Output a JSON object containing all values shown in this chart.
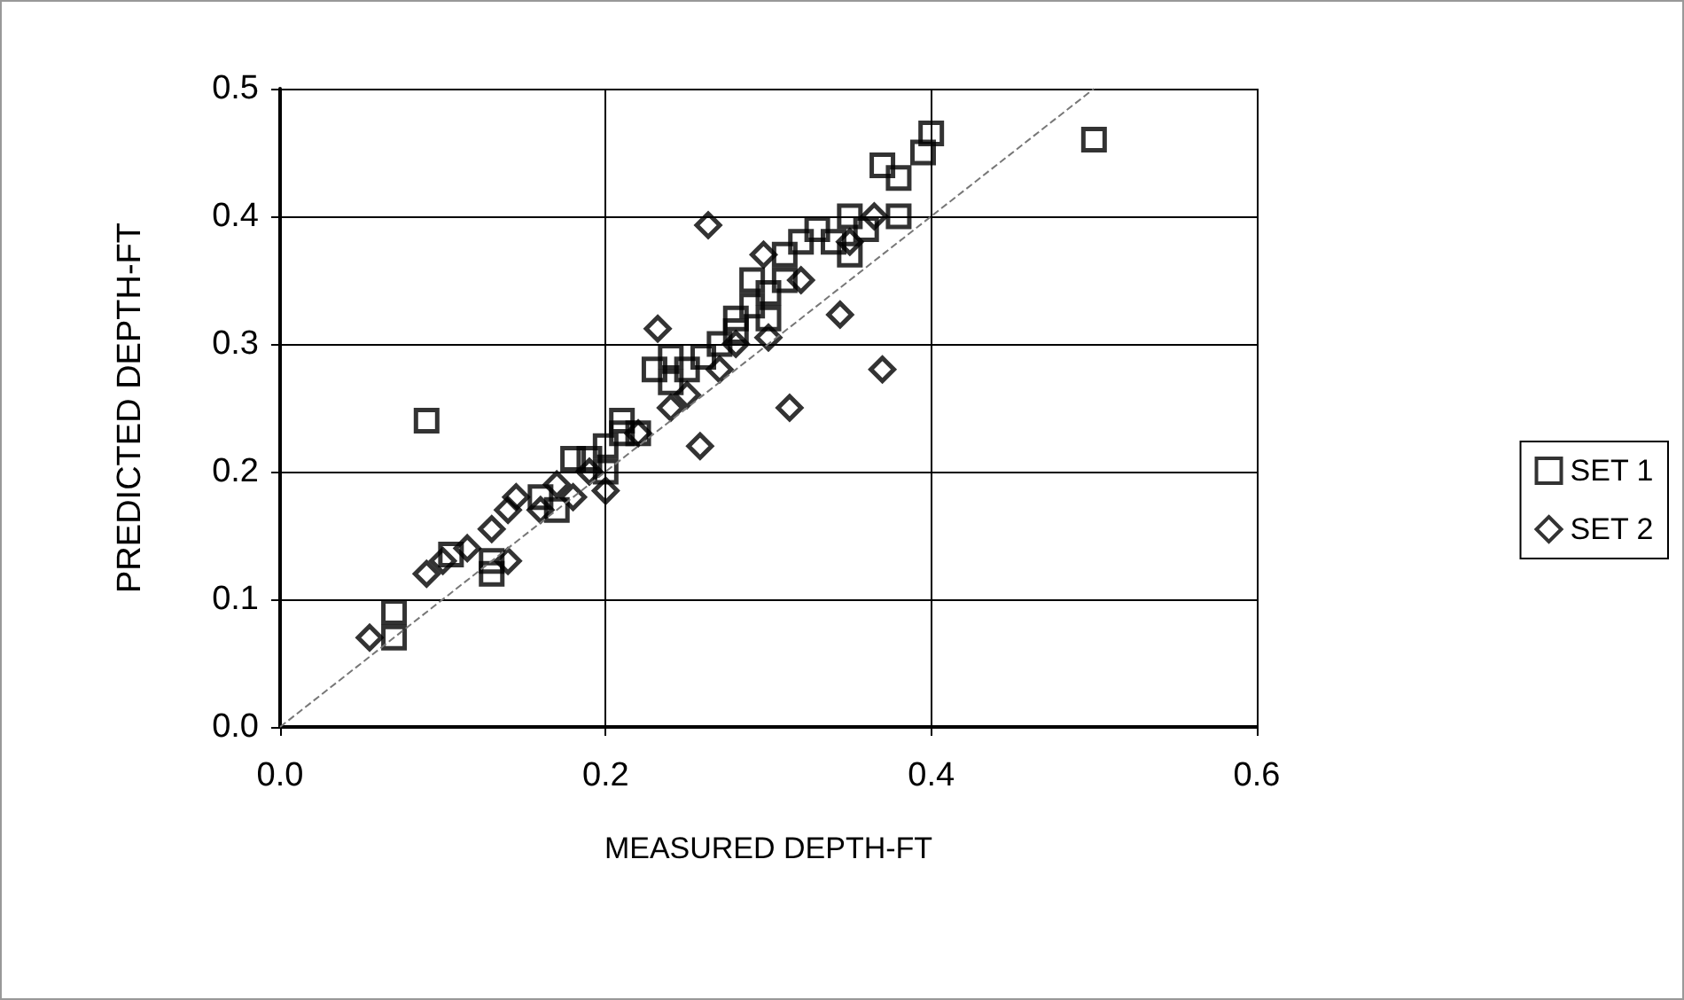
{
  "chart_data": {
    "type": "scatter",
    "xlabel": "MEASURED DEPTH-FT",
    "ylabel": "PREDICTED DEPTH-FT",
    "xlim": [
      0,
      0.6
    ],
    "xticks": [
      {
        "value": 0,
        "label": "0.0"
      },
      {
        "value": 0.2,
        "label": "0.2"
      },
      {
        "value": 0.4,
        "label": "0.4"
      },
      {
        "value": 0.6,
        "label": "0.6"
      }
    ],
    "ylim": [
      0,
      0.5
    ],
    "yticks": [
      {
        "value": 0,
        "label": "0.0"
      },
      {
        "value": 0.1,
        "label": "0.1"
      },
      {
        "value": 0.2,
        "label": "0.2"
      },
      {
        "value": 0.3,
        "label": "0.3"
      },
      {
        "value": 0.4,
        "label": "0.4"
      },
      {
        "value": 0.5,
        "label": "0.5"
      }
    ],
    "grid": true,
    "legend": "right",
    "series": [
      {
        "name": "SET 1",
        "color": "#000000",
        "marker": "square",
        "x": [
          0.07,
          0.07,
          0.09,
          0.105,
          0.13,
          0.13,
          0.16,
          0.17,
          0.18,
          0.19,
          0.2,
          0.2,
          0.21,
          0.21,
          0.22,
          0.23,
          0.24,
          0.24,
          0.25,
          0.26,
          0.27,
          0.28,
          0.28,
          0.29,
          0.29,
          0.3,
          0.3,
          0.31,
          0.31,
          0.32,
          0.33,
          0.34,
          0.35,
          0.35,
          0.36,
          0.37,
          0.38,
          0.38,
          0.395,
          0.4,
          0.5
        ],
        "values": [
          0.09,
          0.07,
          0.24,
          0.135,
          0.12,
          0.13,
          0.18,
          0.17,
          0.21,
          0.21,
          0.22,
          0.2,
          0.23,
          0.24,
          0.23,
          0.28,
          0.27,
          0.29,
          0.28,
          0.29,
          0.3,
          0.31,
          0.32,
          0.33,
          0.35,
          0.34,
          0.32,
          0.35,
          0.37,
          0.38,
          0.39,
          0.38,
          0.4,
          0.37,
          0.39,
          0.44,
          0.43,
          0.4,
          0.45,
          0.465,
          0.46
        ]
      },
      {
        "name": "SET 2",
        "color": "#000000",
        "marker": "diamond",
        "x": [
          0.055,
          0.09,
          0.1,
          0.115,
          0.13,
          0.14,
          0.14,
          0.145,
          0.16,
          0.17,
          0.18,
          0.19,
          0.2,
          0.22,
          0.232,
          0.24,
          0.25,
          0.258,
          0.263,
          0.27,
          0.28,
          0.297,
          0.3,
          0.313,
          0.32,
          0.344,
          0.35,
          0.365,
          0.37
        ],
        "values": [
          0.07,
          0.12,
          0.13,
          0.14,
          0.155,
          0.17,
          0.13,
          0.18,
          0.17,
          0.19,
          0.18,
          0.2,
          0.185,
          0.23,
          0.312,
          0.25,
          0.26,
          0.22,
          0.393,
          0.28,
          0.3,
          0.37,
          0.305,
          0.25,
          0.35,
          0.323,
          0.38,
          0.4,
          0.28
        ]
      },
      {
        "type": "line",
        "color": "#777777",
        "marker": "none",
        "line_style": "dashed",
        "x": [
          0,
          0.5
        ],
        "values": [
          0,
          0.5
        ]
      }
    ]
  }
}
